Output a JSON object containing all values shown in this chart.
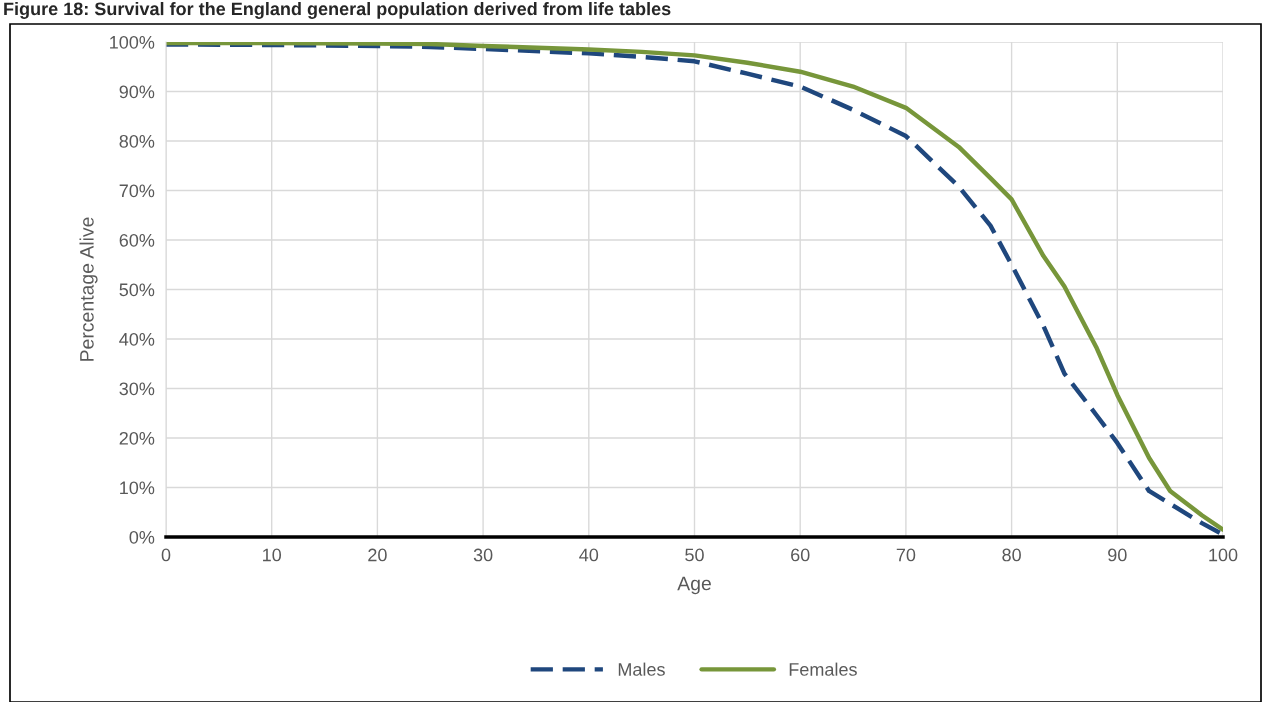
{
  "chart_data": {
    "type": "line",
    "title": "Figure 18: Survival for the England general population derived from life tables",
    "xlabel": "Age",
    "ylabel": "Percentage Alive",
    "x": [
      0,
      10,
      20,
      25,
      30,
      40,
      45,
      50,
      55,
      60,
      65,
      70,
      75,
      78,
      80,
      83,
      85,
      88,
      90,
      93,
      95,
      98,
      100
    ],
    "series": [
      {
        "name": "Males",
        "color": "#1f477d",
        "line_style": "dashed",
        "values": [
          99.5,
          99.4,
          99.2,
          99.0,
          98.6,
          97.7,
          97.0,
          96.1,
          93.6,
          91.0,
          86.3,
          81.0,
          70.8,
          62.9,
          55.0,
          42.7,
          33.0,
          24.7,
          19.0,
          9.3,
          6.7,
          2.8,
          0.5
        ]
      },
      {
        "name": "Females",
        "color": "#77963a",
        "line_style": "solid",
        "values": [
          99.8,
          99.8,
          99.7,
          99.6,
          99.2,
          98.5,
          98.0,
          97.3,
          95.8,
          94.0,
          91.0,
          86.7,
          78.8,
          72.5,
          68.2,
          56.8,
          50.6,
          38.4,
          28.7,
          16.0,
          9.3,
          4.4,
          1.5
        ]
      }
    ],
    "xlim": [
      0,
      100
    ],
    "xticks": [
      0,
      10,
      20,
      30,
      40,
      50,
      60,
      70,
      80,
      90,
      100
    ],
    "ylim": [
      0,
      100
    ],
    "yticks": [
      {
        "value": 0,
        "label": "0%"
      },
      {
        "value": 10,
        "label": "10%"
      },
      {
        "value": 20,
        "label": "20%"
      },
      {
        "value": 30,
        "label": "30%"
      },
      {
        "value": 40,
        "label": "40%"
      },
      {
        "value": 50,
        "label": "50%"
      },
      {
        "value": 60,
        "label": "60%"
      },
      {
        "value": 70,
        "label": "70%"
      },
      {
        "value": 80,
        "label": "80%"
      },
      {
        "value": 90,
        "label": "90%"
      },
      {
        "value": 100,
        "label": "100%"
      }
    ],
    "grid": true,
    "legend": "bottom"
  }
}
